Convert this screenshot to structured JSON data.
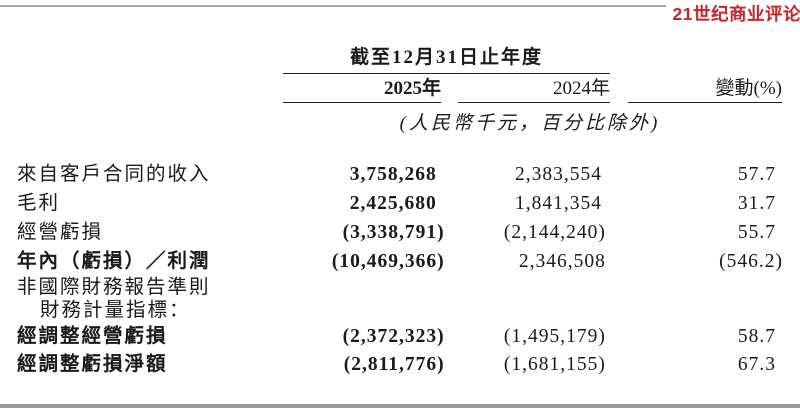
{
  "colors": {
    "logo_red": "#c2272d",
    "rule_gray": "#a9a9a9",
    "bottom_gray": "#9a9a9a",
    "text": "#1a1a1a"
  },
  "logo": {
    "text": "21世纪商业评论"
  },
  "table": {
    "period_header": "截至12月31日止年度",
    "columns": {
      "y2025": "2025年",
      "y2024": "2024年",
      "change": "變動(%)"
    },
    "unit_note": "(人民幣千元，百分比除外)",
    "rows": [
      {
        "label": "來自客戶合同的收入",
        "v2025": "3,758,268",
        "v2024": "2,383,554",
        "change": "57.7"
      },
      {
        "label": "毛利",
        "v2025": "2,425,680",
        "v2024": "1,841,354",
        "change": "31.7"
      },
      {
        "label": "經營虧損",
        "v2025": "(3,338,791)",
        "v2024": "(2,144,240)",
        "change": "55.7"
      },
      {
        "label": "年內（虧損）／利潤",
        "v2025": "(10,469,366)",
        "v2024": "2,346,508",
        "change": "(546.2)"
      },
      {
        "label": "非國際財務報告準則"
      },
      {
        "label": "財務計量指標："
      },
      {
        "label": "經調整經營虧損",
        "v2025": "(2,372,323)",
        "v2024": "(1,495,179)",
        "change": "58.7"
      },
      {
        "label": "經調整虧損淨額",
        "v2025": "(2,811,776)",
        "v2024": "(1,681,155)",
        "change": "67.3"
      }
    ]
  }
}
